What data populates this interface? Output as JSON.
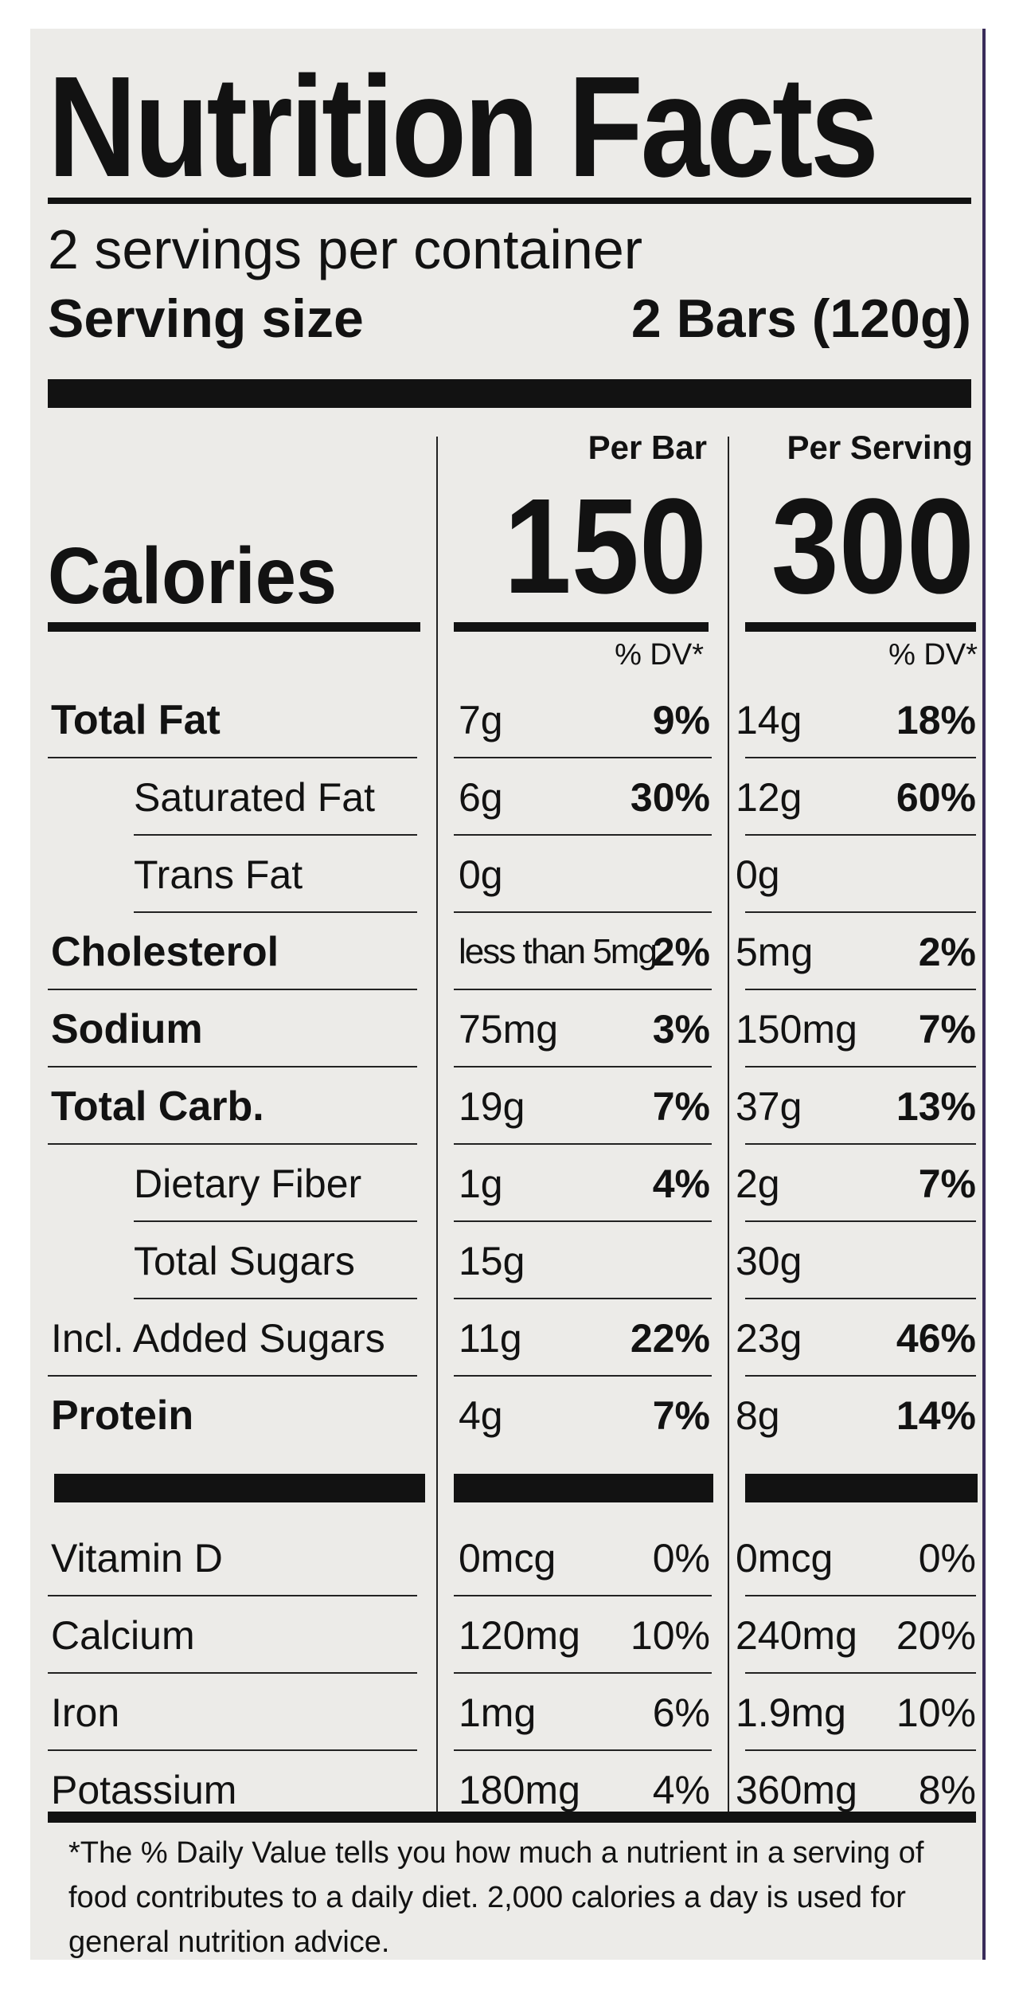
{
  "title": "Nutrition Facts",
  "servings_per_container": "2 servings per container",
  "serving_size": {
    "label": "Serving size",
    "value": "2 Bars (120g)"
  },
  "columns": {
    "per_bar": "Per Bar",
    "per_serving": "Per Serving"
  },
  "calories": {
    "label": "Calories",
    "per_bar": "150",
    "per_serving": "300"
  },
  "dv_header": "% DV*",
  "nutrients": [
    {
      "name": "Total Fat",
      "bold": true,
      "indent": false,
      "bar_amount": "7g",
      "bar_dv": "9%",
      "serving_amount": "14g",
      "serving_dv": "18%"
    },
    {
      "name": "Saturated Fat",
      "bold": false,
      "indent": true,
      "bar_amount": "6g",
      "bar_dv": "30%",
      "serving_amount": "12g",
      "serving_dv": "60%"
    },
    {
      "name": "Trans Fat",
      "bold": false,
      "indent": true,
      "bar_amount": "0g",
      "bar_dv": "",
      "serving_amount": "0g",
      "serving_dv": ""
    },
    {
      "name": "Cholesterol",
      "bold": true,
      "indent": false,
      "bar_amount": "less than 5mg",
      "bar_dv": "2%",
      "serving_amount": "5mg",
      "serving_dv": "2%"
    },
    {
      "name": "Sodium",
      "bold": true,
      "indent": false,
      "bar_amount": "75mg",
      "bar_dv": "3%",
      "serving_amount": "150mg",
      "serving_dv": "7%"
    },
    {
      "name": "Total Carb.",
      "bold": true,
      "indent": false,
      "bar_amount": "19g",
      "bar_dv": "7%",
      "serving_amount": "37g",
      "serving_dv": "13%"
    },
    {
      "name": "Dietary Fiber",
      "bold": false,
      "indent": true,
      "bar_amount": "1g",
      "bar_dv": "4%",
      "serving_amount": "2g",
      "serving_dv": "7%"
    },
    {
      "name": "Total Sugars",
      "bold": false,
      "indent": true,
      "bar_amount": "15g",
      "bar_dv": "",
      "serving_amount": "30g",
      "serving_dv": ""
    },
    {
      "name": "Incl. Added Sugars",
      "bold": false,
      "indent": false,
      "bar_amount": "11g",
      "bar_dv": "22%",
      "serving_amount": "23g",
      "serving_dv": "46%"
    },
    {
      "name": "Protein",
      "bold": true,
      "indent": false,
      "bar_amount": "4g",
      "bar_dv": "7%",
      "serving_amount": "8g",
      "serving_dv": "14%"
    }
  ],
  "vitamins": [
    {
      "name": "Vitamin D",
      "bar_amount": "0mcg",
      "bar_dv": "0%",
      "serving_amount": "0mcg",
      "serving_dv": "0%"
    },
    {
      "name": "Calcium",
      "bar_amount": "120mg",
      "bar_dv": "10%",
      "serving_amount": "240mg",
      "serving_dv": "20%"
    },
    {
      "name": "Iron",
      "bar_amount": "1mg",
      "bar_dv": "6%",
      "serving_amount": "1.9mg",
      "serving_dv": "10%"
    },
    {
      "name": "Potassium",
      "bar_amount": "180mg",
      "bar_dv": "4%",
      "serving_amount": "360mg",
      "serving_dv": "8%"
    }
  ],
  "footnote": "*The % Daily Value tells you how much a nutrient in a serving of food contributes to a daily diet. 2,000 calories a day is used for general nutrition advice."
}
